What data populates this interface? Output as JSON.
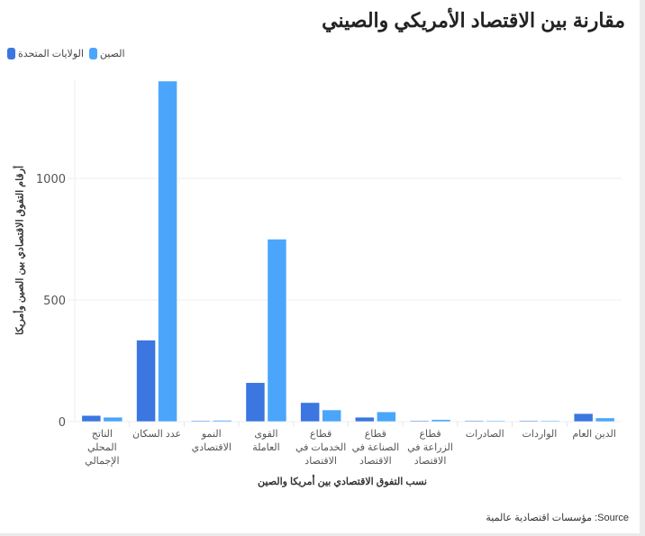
{
  "header": {
    "title": "مقارنة بين الاقتصاد الأمريكي والصيني"
  },
  "legend": [
    {
      "label": "الولايات المتحدة",
      "color": "#3b76e1"
    },
    {
      "label": "الصين",
      "color": "#4ba6fb"
    }
  ],
  "footer": {
    "source": "Source: مؤسسات اقتصادية عالمية"
  },
  "colors": {
    "us": "#3b76e1",
    "china": "#4ba6fb",
    "grid": "#eeeeee",
    "axis_text": "#555555"
  },
  "chart_data": {
    "type": "bar",
    "title": "مقارنة بين الاقتصاد الأمريكي والصيني",
    "xlabel": "نسب التفوق الاقتصادي بين أمريكا والصين",
    "ylabel": "أرقام التفوق الاقتصادي بين الصين وأمريكا",
    "categories": [
      "الناتج المحلي الإجمالي",
      "عدد السكان",
      "النمو الاقتصادي",
      "القوى العاملة",
      "قطاع الخدمات في الاقتصاد",
      "قطاع الصناعة في الاقتصاد",
      "قطاع الزراعة في الاقتصاد",
      "الصادرات",
      "الواردات",
      "الدين العام"
    ],
    "category_lines": [
      [
        "الناتج",
        "المحلي",
        "الإجمالي"
      ],
      [
        "عدد السكان"
      ],
      [
        "النمو",
        "الاقتصادي"
      ],
      [
        "القوى",
        "العاملة"
      ],
      [
        "قطاع",
        "الخدمات في",
        "الاقتصاد"
      ],
      [
        "قطاع",
        "الصناعة في",
        "الاقتصاد"
      ],
      [
        "قطاع",
        "الزراعة في",
        "الاقتصاد"
      ],
      [
        "الصادرات"
      ],
      [
        "الواردات"
      ],
      [
        "الدين العام"
      ]
    ],
    "series": [
      {
        "name": "الولايات المتحدة",
        "values": [
          25,
          335,
          2.5,
          160,
          78,
          18,
          1,
          2.5,
          3.2,
          33
        ]
      },
      {
        "name": "الصين",
        "values": [
          18,
          1400,
          5.2,
          750,
          48,
          40,
          8,
          3.4,
          2.7,
          15
        ]
      }
    ],
    "yticks": [
      0,
      500,
      1000
    ],
    "ylim": [
      0,
      1400
    ],
    "grid": true,
    "legend_position": "top-left"
  }
}
